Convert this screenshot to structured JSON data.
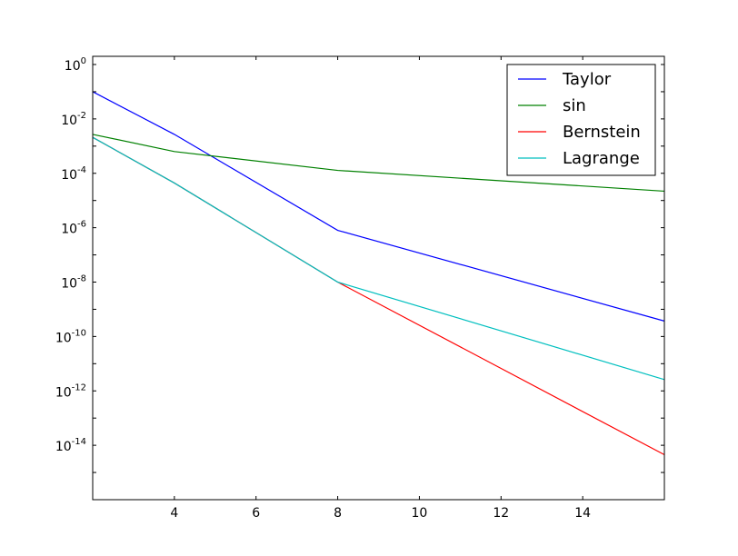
{
  "chart_data": {
    "type": "line",
    "title": "",
    "xlabel": "",
    "ylabel": "",
    "x": [
      2,
      4,
      8,
      16
    ],
    "xlim": [
      2,
      16
    ],
    "ylim": [
      1e-16,
      2
    ],
    "yscale": "log",
    "grid": false,
    "legend_position": "top-right",
    "x_ticks": [
      4,
      6,
      8,
      10,
      12,
      14
    ],
    "x_tick_labels": [
      "4",
      "6",
      "8",
      "10",
      "12",
      "14"
    ],
    "y_ticks": [
      1.0,
      0.01,
      0.0001,
      1e-06,
      1e-08,
      1e-10,
      1e-12,
      1e-14
    ],
    "y_tick_labels": [
      {
        "base": "10",
        "exp": "0"
      },
      {
        "base": "10",
        "exp": "-2"
      },
      {
        "base": "10",
        "exp": "-4"
      },
      {
        "base": "10",
        "exp": "-6"
      },
      {
        "base": "10",
        "exp": "-8"
      },
      {
        "base": "10",
        "exp": "-10"
      },
      {
        "base": "10",
        "exp": "-12"
      },
      {
        "base": "10",
        "exp": "-14"
      }
    ],
    "series": [
      {
        "name": "Taylor",
        "color": "#0000ff",
        "values": [
          0.1,
          0.0027,
          8e-07,
          3.7e-10
        ]
      },
      {
        "name": "sin",
        "color": "#008000",
        "values": [
          0.0027,
          0.00063,
          0.000128,
          2.2e-05
        ]
      },
      {
        "name": "Bernstein",
        "color": "#ff0000",
        "values": [
          0.0021,
          4.4e-05,
          1e-08,
          4.5e-15
        ]
      },
      {
        "name": "Lagrange",
        "color": "#00bfbf",
        "values": [
          0.0021,
          4.4e-05,
          1e-08,
          2.6e-12
        ]
      }
    ]
  }
}
